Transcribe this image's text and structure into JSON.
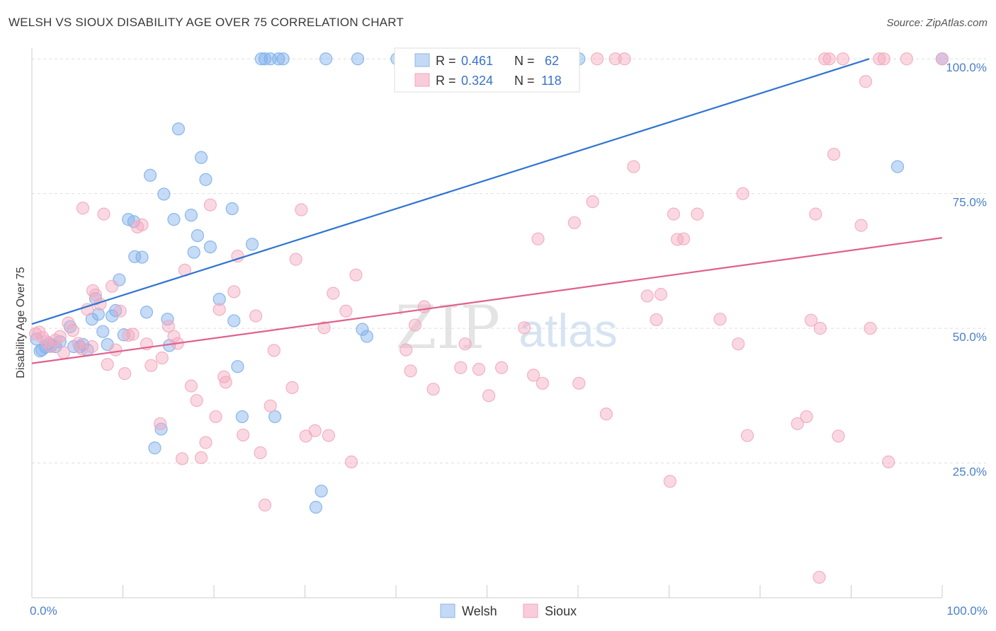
{
  "header": {
    "title": "WELSH VS SIOUX DISABILITY AGE OVER 75 CORRELATION CHART",
    "source": "Source: ZipAtlas.com"
  },
  "watermark": {
    "zip": "ZIP",
    "atlas": "atlas"
  },
  "legend_top": [
    {
      "r_label": "R =",
      "r_value": "0.461",
      "n_label": "N =",
      "n_value": "62"
    },
    {
      "r_label": "R =",
      "r_value": "0.324",
      "n_label": "N =",
      "n_value": "118"
    }
  ],
  "legend_bottom": [
    "Welsh",
    "Sioux"
  ],
  "chart_data": {
    "type": "scatter",
    "title": "WELSH VS SIOUX DISABILITY AGE OVER 75 CORRELATION CHART",
    "xlabel": "",
    "ylabel": "Disability Age Over 75",
    "xlim": [
      0,
      100
    ],
    "ylim": [
      0,
      102
    ],
    "x_tick_labels": [
      "0.0%",
      "100.0%"
    ],
    "y_ticks": [
      25,
      50,
      75,
      100
    ],
    "y_tick_labels": [
      "25.0%",
      "50.0%",
      "75.0%",
      "100.0%"
    ],
    "grid": true,
    "legend": "top-center",
    "series": [
      {
        "name": "Welsh",
        "color": "#7fb0ea",
        "line_color": "#2f74d0",
        "r": 0.461,
        "n": 62,
        "trend": {
          "x": [
            0,
            92
          ],
          "y": [
            50.8,
            100
          ]
        },
        "points": [
          [
            0.5,
            48
          ],
          [
            0.9,
            45.8
          ],
          [
            1.1,
            46
          ],
          [
            1.5,
            46.5
          ],
          [
            1.9,
            47.2
          ],
          [
            2.1,
            46.8
          ],
          [
            2.6,
            46.6
          ],
          [
            3.1,
            47.5
          ],
          [
            4.2,
            50.3
          ],
          [
            4.6,
            46.6
          ],
          [
            5.3,
            46.6
          ],
          [
            5.6,
            47
          ],
          [
            6.1,
            46
          ],
          [
            6.6,
            51.7
          ],
          [
            7,
            55.5
          ],
          [
            7.3,
            52.6
          ],
          [
            7.8,
            49.4
          ],
          [
            8.3,
            47
          ],
          [
            8.8,
            52.3
          ],
          [
            9.2,
            53.3
          ],
          [
            9.6,
            59
          ],
          [
            10.1,
            48.8
          ],
          [
            10.6,
            70.2
          ],
          [
            11.2,
            69.8
          ],
          [
            11.3,
            63.3
          ],
          [
            12.1,
            63.2
          ],
          [
            12.6,
            53
          ],
          [
            13,
            78.4
          ],
          [
            13.5,
            27.8
          ],
          [
            14.2,
            31.3
          ],
          [
            14.5,
            74.9
          ],
          [
            14.9,
            51.7
          ],
          [
            15.1,
            46.8
          ],
          [
            15.6,
            70.2
          ],
          [
            16.1,
            87
          ],
          [
            17.5,
            71
          ],
          [
            17.8,
            64.1
          ],
          [
            18.2,
            67.2
          ],
          [
            18.6,
            81.7
          ],
          [
            19.1,
            77.6
          ],
          [
            19.6,
            65.1
          ],
          [
            20.6,
            55.4
          ],
          [
            22,
            72.2
          ],
          [
            22.2,
            51.4
          ],
          [
            22.6,
            42.9
          ],
          [
            23.1,
            33.6
          ],
          [
            24.2,
            65.6
          ],
          [
            25.2,
            100
          ],
          [
            25.6,
            100
          ],
          [
            26.2,
            100
          ],
          [
            26.7,
            33.6
          ],
          [
            27.1,
            100
          ],
          [
            27.6,
            100
          ],
          [
            31.2,
            16.8
          ],
          [
            31.8,
            19.8
          ],
          [
            32.3,
            100
          ],
          [
            35.8,
            100
          ],
          [
            36.3,
            49.8
          ],
          [
            36.8,
            48.5
          ],
          [
            40.1,
            100
          ],
          [
            60.1,
            100
          ],
          [
            95.1,
            80
          ],
          [
            100,
            100
          ]
        ]
      },
      {
        "name": "Sioux",
        "color": "#f3a8bf",
        "line_color": "#e0608e",
        "r": 0.324,
        "n": 118,
        "trend": {
          "x": [
            0,
            100
          ],
          "y": [
            43.5,
            66.8
          ]
        },
        "points": [
          [
            0.4,
            49
          ],
          [
            0.8,
            49.3
          ],
          [
            1.2,
            48.3
          ],
          [
            1.6,
            47.5
          ],
          [
            2.1,
            46.6
          ],
          [
            2.6,
            47.8
          ],
          [
            3.1,
            48.5
          ],
          [
            3.5,
            45.5
          ],
          [
            4,
            51
          ],
          [
            4.5,
            49.6
          ],
          [
            5.1,
            47.2
          ],
          [
            5.5,
            46.2
          ],
          [
            5.6,
            72.3
          ],
          [
            6.1,
            53.5
          ],
          [
            6.6,
            46.6
          ],
          [
            6.7,
            57
          ],
          [
            7,
            56.2
          ],
          [
            7.5,
            54.5
          ],
          [
            7.9,
            71.2
          ],
          [
            8.3,
            43.3
          ],
          [
            8.8,
            57.8
          ],
          [
            9.2,
            46
          ],
          [
            9.7,
            53.2
          ],
          [
            10.2,
            41.6
          ],
          [
            10.6,
            48.7
          ],
          [
            11.1,
            48.9
          ],
          [
            11.6,
            68.8
          ],
          [
            12.1,
            69.2
          ],
          [
            12.6,
            47.1
          ],
          [
            13.1,
            43.1
          ],
          [
            14.1,
            32.3
          ],
          [
            14.3,
            44.5
          ],
          [
            15,
            50.4
          ],
          [
            15.6,
            48.5
          ],
          [
            16,
            47.2
          ],
          [
            16.5,
            25.8
          ],
          [
            16.8,
            60.8
          ],
          [
            17.5,
            39.3
          ],
          [
            18.1,
            36.6
          ],
          [
            18.6,
            26
          ],
          [
            19.1,
            28.8
          ],
          [
            19.6,
            72.9
          ],
          [
            20.2,
            33.6
          ],
          [
            20.6,
            53.5
          ],
          [
            21.1,
            41
          ],
          [
            21.3,
            40
          ],
          [
            22.2,
            56.8
          ],
          [
            22.6,
            63.4
          ],
          [
            23.2,
            30.2
          ],
          [
            24.6,
            52.3
          ],
          [
            25.1,
            26.9
          ],
          [
            25.6,
            17.2
          ],
          [
            26.2,
            35.6
          ],
          [
            26.6,
            45.9
          ],
          [
            28.6,
            39
          ],
          [
            29,
            62.8
          ],
          [
            29.6,
            72
          ],
          [
            30.1,
            30
          ],
          [
            31.1,
            31
          ],
          [
            32.1,
            50.1
          ],
          [
            32.6,
            30.1
          ],
          [
            33.1,
            56.5
          ],
          [
            34.5,
            53.2
          ],
          [
            35.1,
            25.2
          ],
          [
            35.6,
            59.9
          ],
          [
            41.1,
            46
          ],
          [
            41.6,
            42.1
          ],
          [
            42.1,
            50.6
          ],
          [
            43.1,
            54
          ],
          [
            44.1,
            38.7
          ],
          [
            45.1,
            100
          ],
          [
            47.1,
            42.7
          ],
          [
            47.6,
            47.1
          ],
          [
            49.1,
            42.4
          ],
          [
            49.6,
            100
          ],
          [
            50.2,
            37.5
          ],
          [
            51.6,
            42.7
          ],
          [
            54.1,
            50.1
          ],
          [
            55.1,
            41.3
          ],
          [
            55.6,
            66.6
          ],
          [
            56.1,
            39.8
          ],
          [
            59.6,
            69.6
          ],
          [
            60.1,
            39.8
          ],
          [
            61.6,
            73.5
          ],
          [
            62.1,
            100
          ],
          [
            63.1,
            34.1
          ],
          [
            64.1,
            100
          ],
          [
            65.1,
            100
          ],
          [
            66.1,
            80
          ],
          [
            67.6,
            56
          ],
          [
            68.6,
            51.6
          ],
          [
            69.1,
            56.3
          ],
          [
            70.1,
            21.6
          ],
          [
            70.5,
            71.2
          ],
          [
            70.9,
            66.5
          ],
          [
            71.6,
            66.6
          ],
          [
            73.1,
            71.2
          ],
          [
            75.6,
            51.7
          ],
          [
            77.6,
            47.1
          ],
          [
            78.1,
            75
          ],
          [
            78.6,
            30.1
          ],
          [
            84.1,
            32.3
          ],
          [
            85.1,
            33.6
          ],
          [
            85.6,
            51.5
          ],
          [
            86.1,
            71.2
          ],
          [
            86.5,
            3.8
          ],
          [
            86.6,
            50
          ],
          [
            87.1,
            100
          ],
          [
            87.6,
            100
          ],
          [
            88.1,
            82.3
          ],
          [
            88.6,
            30
          ],
          [
            89.1,
            100
          ],
          [
            91.1,
            69.1
          ],
          [
            91.6,
            95.8
          ],
          [
            92.1,
            50
          ],
          [
            93.1,
            100
          ],
          [
            93.6,
            100
          ],
          [
            94.1,
            25.2
          ],
          [
            96.1,
            100
          ],
          [
            100,
            100
          ]
        ]
      }
    ]
  }
}
